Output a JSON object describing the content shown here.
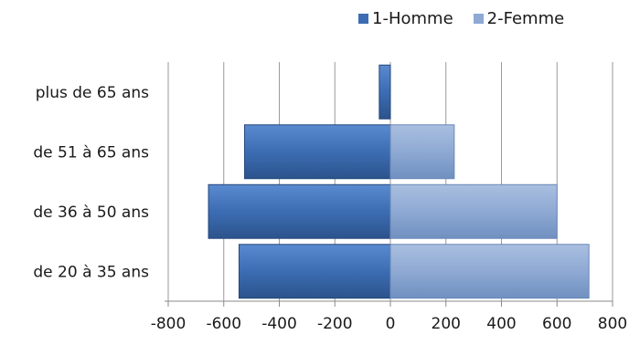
{
  "chart_data": {
    "type": "bar",
    "orientation": "horizontal",
    "categories": [
      "de 20 à 35 ans",
      "de 36 à 50 ans",
      "de 51 à 65 ans",
      "plus de 65 ans"
    ],
    "series": [
      {
        "name": "1-Homme",
        "values": [
          -545,
          -655,
          -525,
          -40
        ],
        "color": "#3c6db3"
      },
      {
        "name": "2-Femme",
        "values": [
          715,
          600,
          230,
          0
        ],
        "color": "#8ea9d3"
      }
    ],
    "xlim": [
      -800,
      800
    ],
    "xticks": [
      -800,
      -600,
      -400,
      -200,
      0,
      200,
      400,
      600,
      800
    ],
    "xticklabels": [
      "-800",
      "-600",
      "-400",
      "-200",
      "0",
      "200",
      "400",
      "600",
      "800"
    ],
    "grid": true,
    "legend_position": "top-right"
  }
}
